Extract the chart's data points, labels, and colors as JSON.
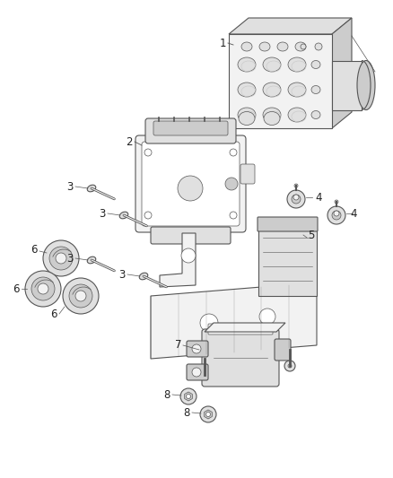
{
  "background_color": "#ffffff",
  "figsize": [
    4.38,
    5.33
  ],
  "dpi": 100,
  "line_color": "#555555",
  "text_color": "#222222",
  "font_size": 8.5,
  "face_light": "#f2f2f2",
  "face_mid": "#e0e0e0",
  "face_dark": "#cccccc",
  "face_white": "#ffffff"
}
